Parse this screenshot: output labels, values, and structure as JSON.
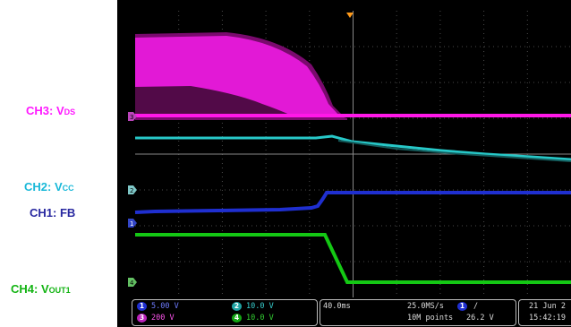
{
  "labels": {
    "ch3_main": "CH3: V",
    "ch3_sub": "DS",
    "ch2_main": "CH2: V",
    "ch2_sub": "CC",
    "ch1": "CH1: FB",
    "ch4_main": "CH4: V",
    "ch4_sub": "OUT1"
  },
  "colors": {
    "ch1": "#1f2fd0",
    "ch2": "#27c8c8",
    "ch3": "#ff18e8",
    "ch4": "#14c814",
    "ch3_label": "#ff18ff",
    "ch2_label": "#19b8d8",
    "ch1_label": "#2828a0",
    "ch4_label": "#13b413"
  },
  "status": {
    "ch1_num": "1",
    "ch1_scale": "5.00 V",
    "ch3_num": "3",
    "ch3_scale": "200 V",
    "ch2_num": "2",
    "ch2_scale": "10.0 V",
    "ch4_num": "4",
    "ch4_scale": "10.0 V",
    "timebase": "40.0ms",
    "sample_rate": "25.0MS/s",
    "record_length": "10M points",
    "trigger_channel": "1",
    "trigger_slope": "/",
    "trigger_level": "26.2 V",
    "date": "21 Jun 2",
    "time": "15:42:19"
  },
  "markers": {
    "ch1": "1",
    "ch2": "2",
    "ch3": "3",
    "ch4": "4"
  }
}
